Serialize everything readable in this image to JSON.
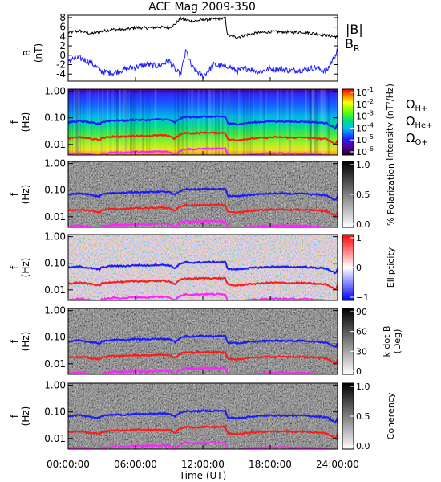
{
  "figure": {
    "title": "ACE Mag 2009-350",
    "xlabel": "Time (UT)",
    "x_ticks": [
      "00:00:00",
      "06:00:00",
      "12:00:00",
      "18:00:00",
      "24:00:00"
    ]
  },
  "colors": {
    "B_total": "#000000",
    "B_R": "#2020ff",
    "H_plus": "#1a1aff",
    "He_plus": "#ff1a1a",
    "O_plus": "#ff22ff"
  },
  "chart_data": [
    {
      "type": "line",
      "panel": "magnetic-field",
      "ylabel_top": "B",
      "ylabel_bottom": "(nT)",
      "y_ticks": [
        "8",
        "6",
        "4",
        "2",
        "0",
        "-2",
        "-4"
      ],
      "ylim": [
        -5.5,
        8.5
      ],
      "xlim_hours": [
        0,
        24
      ],
      "legend": {
        "total": "|B|",
        "radial_main": "B",
        "radial_sub": "R"
      },
      "series": [
        {
          "name": "|B|",
          "x_hours": [
            0,
            1,
            2,
            3,
            4,
            5,
            6,
            7,
            8,
            9,
            9.5,
            10,
            11,
            12,
            13,
            14,
            14.2,
            15,
            16,
            17,
            18,
            19,
            20,
            21,
            22,
            23,
            24
          ],
          "values": [
            4.8,
            5.2,
            4.6,
            5.1,
            5.5,
            5.4,
            5.9,
            5.8,
            6.0,
            5.9,
            6.5,
            7.8,
            7.2,
            7.5,
            7.7,
            7.8,
            4.2,
            3.8,
            4.4,
            4.8,
            5.0,
            5.0,
            4.9,
            4.9,
            4.6,
            4.2,
            3.9
          ]
        },
        {
          "name": "B_R",
          "x_hours": [
            0,
            1,
            2,
            3,
            4,
            5,
            6,
            7,
            8,
            9,
            9.5,
            10,
            10.5,
            11,
            12,
            13,
            14,
            14.2,
            15,
            16,
            17,
            18,
            19,
            20,
            21,
            22,
            23,
            24
          ],
          "values": [
            -1.0,
            -0.6,
            -1.5,
            -3.5,
            -3.8,
            -3.0,
            -2.5,
            -2.0,
            -2.3,
            -1.2,
            -3.0,
            -4.2,
            1.0,
            -2.5,
            -4.5,
            -2.0,
            -2.5,
            -2.2,
            -3.4,
            -2.8,
            -3.5,
            -2.9,
            -3.0,
            -3.3,
            -3.1,
            -2.6,
            -3.5,
            1.0
          ]
        }
      ]
    },
    {
      "type": "heatmap",
      "panel": "intensity",
      "ylabel_top": "f",
      "ylabel_bottom": "(Hz)",
      "y_ticks": [
        "1.00",
        "0.10",
        "0.01"
      ],
      "colorbar_label": "Intensity (nT²/Hz)",
      "colorbar_ticks": [
        {
          "base": "10",
          "exp": "-1"
        },
        {
          "base": "10",
          "exp": "-2"
        },
        {
          "base": "10",
          "exp": "-3"
        },
        {
          "base": "10",
          "exp": "-4"
        },
        {
          "base": "10",
          "exp": "-5"
        },
        {
          "base": "10",
          "exp": "-6"
        }
      ],
      "legend": [
        {
          "symbol": "Ω",
          "sub": "H+",
          "color": "#1a1aff"
        },
        {
          "symbol": "Ω",
          "sub": "He+",
          "color": "#ff1a1a"
        },
        {
          "symbol": "Ω",
          "sub": "O+",
          "color": "#ff22ff"
        }
      ]
    },
    {
      "type": "heatmap",
      "panel": "polarization",
      "ylabel_top": "f",
      "ylabel_bottom": "(Hz)",
      "y_ticks": [
        "1.00",
        "0.10",
        "0.01"
      ],
      "colorbar_label": "% Polarization",
      "colorbar_ticks": [
        "1.0",
        "0.5",
        "0.0"
      ]
    },
    {
      "type": "heatmap",
      "panel": "ellipticity",
      "ylabel_top": "f",
      "ylabel_bottom": "(Hz)",
      "y_ticks": [
        "1.00",
        "0.10",
        "0.01"
      ],
      "colorbar_label": "Ellipticity",
      "colorbar_ticks": [
        "1",
        "0",
        "−1"
      ]
    },
    {
      "type": "heatmap",
      "panel": "k-dot-b",
      "ylabel_top": "f",
      "ylabel_bottom": "(Hz)",
      "y_ticks": [
        "1.00",
        "0.10",
        "0.01"
      ],
      "colorbar_label": "k dot B (Deg)",
      "colorbar_label_line1": "k dot B",
      "colorbar_label_line2": "(Deg)",
      "colorbar_ticks": [
        "90",
        "60",
        "30",
        "0"
      ]
    },
    {
      "type": "heatmap",
      "panel": "coherency",
      "ylabel_top": "f",
      "ylabel_bottom": "(Hz)",
      "y_ticks": [
        "1.00",
        "0.10",
        "0.01"
      ],
      "colorbar_label": "Coherency",
      "colorbar_ticks": [
        "1.0",
        "0.5",
        "0.0"
      ]
    }
  ],
  "gyrofrequency_lines": {
    "x_hours": [
      0,
      1,
      2,
      2.8,
      3,
      4,
      5,
      6,
      7,
      8,
      9,
      9.5,
      10,
      10.5,
      11,
      12,
      13,
      14,
      14.2,
      15,
      16,
      17,
      18,
      19,
      20,
      21,
      22,
      23,
      23.8,
      24
    ],
    "H_plus_hz": [
      0.068,
      0.075,
      0.066,
      0.058,
      0.07,
      0.08,
      0.078,
      0.085,
      0.083,
      0.088,
      0.085,
      0.065,
      0.095,
      0.11,
      0.105,
      0.11,
      0.11,
      0.11,
      0.062,
      0.058,
      0.065,
      0.07,
      0.074,
      0.074,
      0.072,
      0.073,
      0.068,
      0.064,
      0.04,
      0.06
    ]
  }
}
